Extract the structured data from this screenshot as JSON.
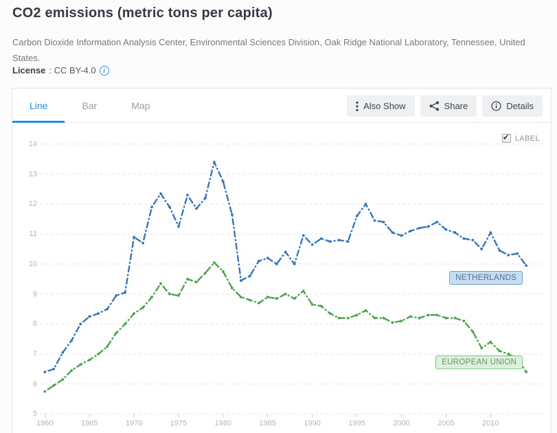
{
  "header": {
    "title": "CO2 emissions (metric tons per capita)",
    "source": "Carbon Dioxide Information Analysis Center, Environmental Sciences Division, Oak Ridge National Laboratory, Tennessee, United States.",
    "license_label": "License",
    "license_value": ": CC BY-4.0"
  },
  "toolbar": {
    "tabs": [
      {
        "label": "Line",
        "active": true
      },
      {
        "label": "Bar",
        "active": false
      },
      {
        "label": "Map",
        "active": false
      }
    ],
    "buttons": [
      {
        "label": "Also Show",
        "icon": "kebab-menu-icon"
      },
      {
        "label": "Share",
        "icon": "share-icon"
      },
      {
        "label": "Details",
        "icon": "info-icon"
      }
    ]
  },
  "chart": {
    "label_toggle": {
      "label": "LABEL",
      "checked": true,
      "checkmark": "✔"
    }
  },
  "chart_data": {
    "type": "line",
    "title": "CO2 emissions (metric tons per capita)",
    "grid": "horizontal-dashed",
    "legend": "end-of-line-labels",
    "ylim": [
      5,
      14
    ],
    "yticks": [
      5,
      6,
      7,
      8,
      9,
      10,
      11,
      12,
      13,
      14
    ],
    "xticks": [
      1960,
      1965,
      1970,
      1975,
      1980,
      1985,
      1990,
      1995,
      2000,
      2005,
      2010
    ],
    "x": [
      1960,
      1961,
      1962,
      1963,
      1964,
      1965,
      1966,
      1967,
      1968,
      1969,
      1970,
      1971,
      1972,
      1973,
      1974,
      1975,
      1976,
      1977,
      1978,
      1979,
      1980,
      1981,
      1982,
      1983,
      1984,
      1985,
      1986,
      1987,
      1988,
      1989,
      1990,
      1991,
      1992,
      1993,
      1994,
      1995,
      1996,
      1997,
      1998,
      1999,
      2000,
      2001,
      2002,
      2003,
      2004,
      2005,
      2006,
      2007,
      2008,
      2009,
      2010,
      2011,
      2012,
      2013,
      2014
    ],
    "series": [
      {
        "name": "NETHERLANDS",
        "color": "#3a75ba",
        "values": [
          6.4,
          6.5,
          7.05,
          7.45,
          8.0,
          8.25,
          8.35,
          8.5,
          8.95,
          9.05,
          10.9,
          10.7,
          11.9,
          12.35,
          11.9,
          11.25,
          12.3,
          11.85,
          12.2,
          13.4,
          12.75,
          11.65,
          9.45,
          9.6,
          10.1,
          10.2,
          10.0,
          10.4,
          10.0,
          10.95,
          10.65,
          10.85,
          10.75,
          10.8,
          10.75,
          11.6,
          12.0,
          11.45,
          11.4,
          11.05,
          10.95,
          11.1,
          11.2,
          11.25,
          11.4,
          11.15,
          11.05,
          10.85,
          10.8,
          10.5,
          11.05,
          10.45,
          10.3,
          10.35,
          9.95
        ]
      },
      {
        "name": "EUROPEAN UNION",
        "color": "#4aa44d",
        "values": [
          5.75,
          5.95,
          6.15,
          6.45,
          6.65,
          6.8,
          7.0,
          7.25,
          7.7,
          8.0,
          8.35,
          8.55,
          8.9,
          9.35,
          9.0,
          8.95,
          9.5,
          9.4,
          9.7,
          10.05,
          9.75,
          9.2,
          8.9,
          8.8,
          8.7,
          8.9,
          8.85,
          9.0,
          8.85,
          9.1,
          8.65,
          8.6,
          8.35,
          8.2,
          8.2,
          8.3,
          8.45,
          8.2,
          8.2,
          8.05,
          8.1,
          8.25,
          8.2,
          8.3,
          8.3,
          8.2,
          8.2,
          8.1,
          7.75,
          7.2,
          7.4,
          7.1,
          7.0,
          6.85,
          6.4
        ]
      }
    ]
  }
}
